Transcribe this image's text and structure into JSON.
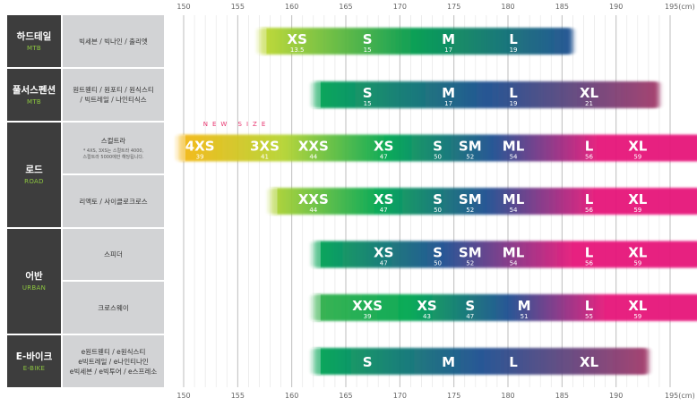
{
  "categories": [
    {
      "ko": "하드테일",
      "en": "MTB"
    },
    {
      "ko": "풀서스펜션",
      "en": "MTB"
    },
    {
      "ko": "로드",
      "en": "ROAD"
    },
    {
      "ko": "어반",
      "en": "URBAN"
    },
    {
      "ko": "E-바이크",
      "en": "E-BIKE"
    }
  ],
  "subcategories": [
    {
      "name": "빅세븐 / 빅나인 / 출리엣",
      "note": ""
    },
    {
      "name": "원트웬티 / 원포티 / 원식스티\n/ 빅트레일 / 나인티식스",
      "note": ""
    },
    {
      "name": "스컬트라",
      "note": "* 4XS, 3XS는 스컬트라 4000,\n스컬트라 5000에만 해당됩니다."
    },
    {
      "name": "리액토 / 사이클로크로스",
      "note": ""
    },
    {
      "name": "스피더",
      "note": ""
    },
    {
      "name": "크로스웨이",
      "note": ""
    },
    {
      "name": "e원트웬티 / e원식스티\ne빅트레일 / e나인티나인\ne빅세븐 / e빅투어 / e스프레소",
      "note": ""
    }
  ],
  "chart_data": {
    "type": "range-band",
    "unit": "(cm)",
    "xlim": [
      150,
      195
    ],
    "x_ticks": [
      "150",
      "155",
      "160",
      "165",
      "170",
      "175",
      "180",
      "185",
      "190",
      "195(cm)"
    ],
    "annotation": "NEW SIZE",
    "rows": [
      {
        "name": "빅세븐 / 빅나인 / 출리엣",
        "range": [
          157,
          186
        ],
        "colors": [
          "#c2d92f",
          "#009a4e",
          "#1d4f91"
        ],
        "sizes": [
          {
            "label": "XS",
            "num": "13.5",
            "x": 160.5
          },
          {
            "label": "S",
            "num": "15",
            "x": 167
          },
          {
            "label": "M",
            "num": "17",
            "x": 174.5
          },
          {
            "label": "L",
            "num": "19",
            "x": 180.5
          }
        ]
      },
      {
        "name": "원트웬티 / 원포티 / 원식스티 / 빅트레일 / 나인티식스",
        "range": [
          162,
          194
        ],
        "colors": [
          "#00a651",
          "#1b4e8f",
          "#a23a6a"
        ],
        "sizes": [
          {
            "label": "S",
            "num": "15",
            "x": 167
          },
          {
            "label": "M",
            "num": "17",
            "x": 174.5
          },
          {
            "label": "L",
            "num": "19",
            "x": 180.5
          },
          {
            "label": "XL",
            "num": "21",
            "x": 187.5
          }
        ]
      },
      {
        "name": "스컬트라",
        "range": [
          149.5,
          198
        ],
        "colors": [
          "#f6b612",
          "#b6d432",
          "#00a651",
          "#1d4f91",
          "#e6197a",
          "#e6197a"
        ],
        "sizes": [
          {
            "label": "4XS",
            "num": "39",
            "x": 151.5
          },
          {
            "label": "3XS",
            "num": "41",
            "x": 157.5
          },
          {
            "label": "XXS",
            "num": "44",
            "x": 162
          },
          {
            "label": "XS",
            "num": "47",
            "x": 168.5
          },
          {
            "label": "S",
            "num": "50",
            "x": 173.5
          },
          {
            "label": "SM",
            "num": "52",
            "x": 176.5
          },
          {
            "label": "ML",
            "num": "54",
            "x": 180.5
          },
          {
            "label": "L",
            "num": "56",
            "x": 187.5
          },
          {
            "label": "XL",
            "num": "59",
            "x": 192
          }
        ]
      },
      {
        "name": "리액토 / 사이클로크로스",
        "range": [
          158,
          198
        ],
        "colors": [
          "#b6d432",
          "#00a651",
          "#1d4f91",
          "#e6197a",
          "#e6197a"
        ],
        "sizes": [
          {
            "label": "XXS",
            "num": "44",
            "x": 162
          },
          {
            "label": "XS",
            "num": "47",
            "x": 168.5
          },
          {
            "label": "S",
            "num": "50",
            "x": 173.5
          },
          {
            "label": "SM",
            "num": "52",
            "x": 176.5
          },
          {
            "label": "ML",
            "num": "54",
            "x": 180.5
          },
          {
            "label": "L",
            "num": "56",
            "x": 187.5
          },
          {
            "label": "XL",
            "num": "59",
            "x": 192
          }
        ]
      },
      {
        "name": "스피더",
        "range": [
          162,
          198
        ],
        "colors": [
          "#00a651",
          "#1d4f91",
          "#e6197a",
          "#e6197a"
        ],
        "sizes": [
          {
            "label": "XS",
            "num": "47",
            "x": 168.5
          },
          {
            "label": "S",
            "num": "50",
            "x": 173.5
          },
          {
            "label": "SM",
            "num": "52",
            "x": 176.5
          },
          {
            "label": "ML",
            "num": "54",
            "x": 180.5
          },
          {
            "label": "L",
            "num": "56",
            "x": 187.5
          },
          {
            "label": "XL",
            "num": "59",
            "x": 192
          }
        ]
      },
      {
        "name": "크로스웨이",
        "range": [
          162,
          198
        ],
        "colors": [
          "#33b04a",
          "#00a651",
          "#1d4f91",
          "#e6197a",
          "#e6197a"
        ],
        "sizes": [
          {
            "label": "XXS",
            "num": "39",
            "x": 167
          },
          {
            "label": "XS",
            "num": "43",
            "x": 172.5
          },
          {
            "label": "S",
            "num": "47",
            "x": 176.5
          },
          {
            "label": "M",
            "num": "51",
            "x": 181.5
          },
          {
            "label": "L",
            "num": "55",
            "x": 187.5
          },
          {
            "label": "XL",
            "num": "59",
            "x": 192
          }
        ]
      },
      {
        "name": "e원트웬티 / e원식스티 / e빅트레일 / e나인티나인 / e빅세븐 / e빅투어 / e스프레소",
        "range": [
          162,
          193
        ],
        "colors": [
          "#00a651",
          "#1d4f91",
          "#a23a6a"
        ],
        "sizes": [
          {
            "label": "S",
            "num": "",
            "x": 167
          },
          {
            "label": "M",
            "num": "",
            "x": 174.5
          },
          {
            "label": "L",
            "num": "",
            "x": 180.5
          },
          {
            "label": "XL",
            "num": "",
            "x": 187.5
          }
        ]
      }
    ]
  }
}
